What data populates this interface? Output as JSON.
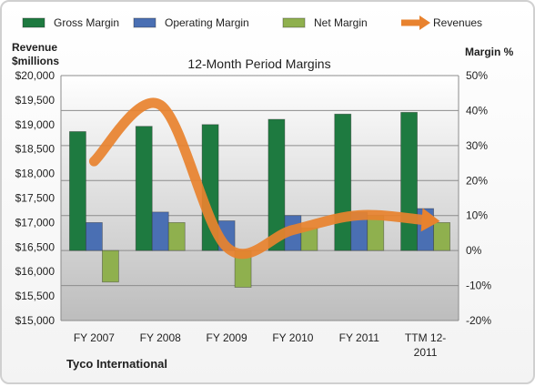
{
  "chart_data": {
    "type": "bar",
    "title": "12-Month Period Margins",
    "company": "Tyco International",
    "categories": [
      [
        "FY 2007"
      ],
      [
        "FY 2008"
      ],
      [
        "FY 2009"
      ],
      [
        "FY 2010"
      ],
      [
        "FY 2011"
      ],
      [
        "TTM 12-",
        "2011"
      ]
    ],
    "left_axis": {
      "label_lines": [
        "Revenue",
        "$millions"
      ],
      "ylim": [
        15000,
        20000
      ],
      "ticks": [
        "$15,000",
        "$15,500",
        "$16,000",
        "$16,500",
        "$17,000",
        "$17,500",
        "$18,000",
        "$18,500",
        "$19,000",
        "$19,500",
        "$20,000"
      ]
    },
    "right_axis": {
      "label": "Margin %",
      "ylim": [
        -20,
        50
      ],
      "ticks": [
        "-20%",
        "-10%",
        "0%",
        "10%",
        "20%",
        "30%",
        "40%",
        "50%"
      ]
    },
    "grid": true,
    "legend_position": "top",
    "series": [
      {
        "name": "Gross Margin",
        "type": "bar",
        "axis": "right",
        "color": "#1e7a40",
        "values": [
          34,
          35.5,
          36,
          37.5,
          39,
          39.5
        ]
      },
      {
        "name": "Operating Margin",
        "type": "bar",
        "axis": "right",
        "color": "#4a6fb3",
        "values": [
          8,
          11,
          8.5,
          10,
          11,
          12
        ]
      },
      {
        "name": "Net Margin",
        "type": "bar",
        "axis": "right",
        "color": "#8fb04e",
        "values": [
          -9,
          8,
          -10.5,
          6.5,
          10,
          8
        ]
      },
      {
        "name": "Revenues",
        "type": "line",
        "axis": "left",
        "color": "#e8822e",
        "values": [
          18250,
          19400,
          16500,
          16850,
          17150,
          17050
        ]
      }
    ]
  }
}
